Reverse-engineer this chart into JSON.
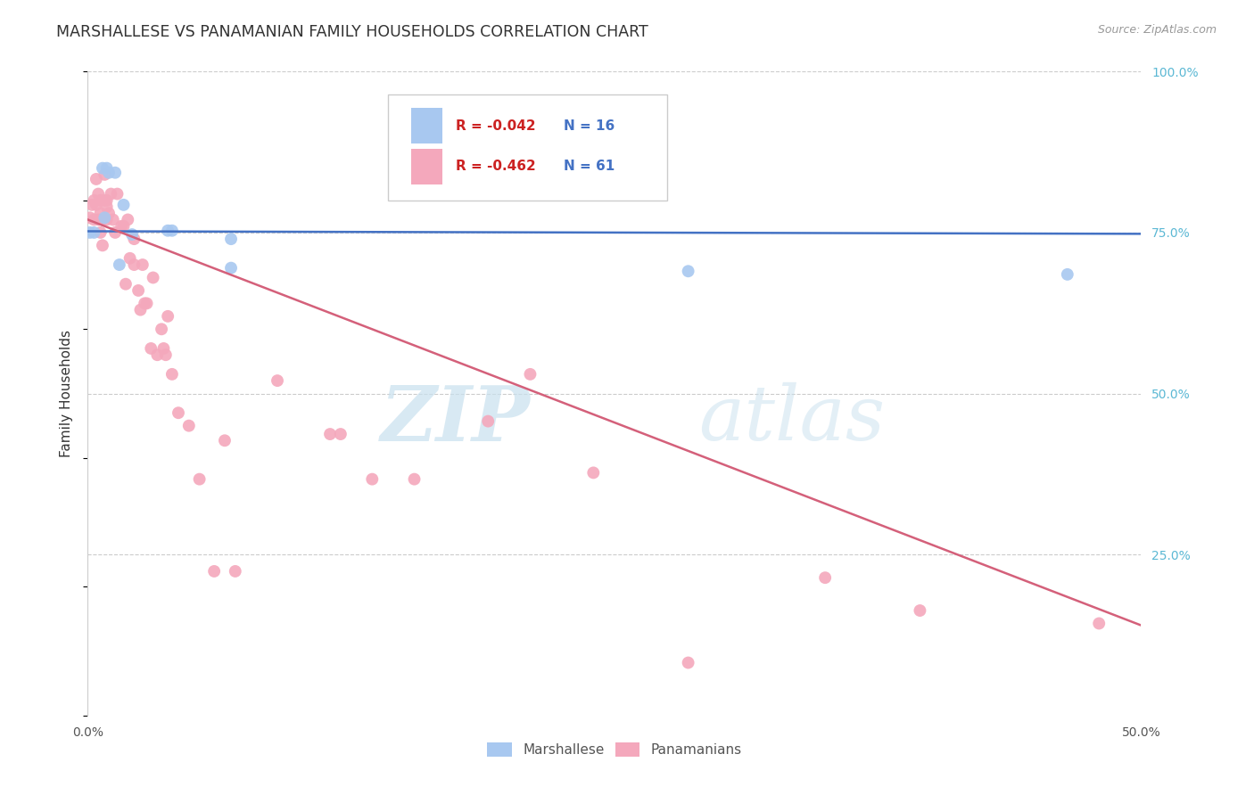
{
  "title": "MARSHALLESE VS PANAMANIAN FAMILY HOUSEHOLDS CORRELATION CHART",
  "source": "Source: ZipAtlas.com",
  "ylabel": "Family Households",
  "x_min": 0.0,
  "x_max": 0.5,
  "y_min": 0.0,
  "y_max": 1.0,
  "marshallese_color": "#A8C8F0",
  "panamanian_color": "#F4A8BC",
  "marshallese_line_color": "#4472C4",
  "panamanian_line_color": "#D4607A",
  "legend_R_marshallese": "-0.042",
  "legend_N_marshallese": "16",
  "legend_R_panamanian": "-0.462",
  "legend_N_panamanian": "61",
  "watermark_zip": "ZIP",
  "watermark_atlas": "atlas",
  "marsh_line_y0": 0.752,
  "marsh_line_y1": 0.748,
  "pan_line_y0": 0.77,
  "pan_line_y1": 0.14,
  "marshallese_x": [
    0.001,
    0.003,
    0.007,
    0.009,
    0.01,
    0.013,
    0.008,
    0.015,
    0.017,
    0.021,
    0.038,
    0.04,
    0.068,
    0.068,
    0.285,
    0.465
  ],
  "marshallese_y": [
    0.75,
    0.75,
    0.85,
    0.85,
    0.843,
    0.843,
    0.773,
    0.7,
    0.793,
    0.747,
    0.753,
    0.753,
    0.74,
    0.695,
    0.69,
    0.685
  ],
  "panamanian_x": [
    0.001,
    0.002,
    0.003,
    0.003,
    0.004,
    0.004,
    0.005,
    0.005,
    0.006,
    0.006,
    0.006,
    0.007,
    0.007,
    0.008,
    0.008,
    0.009,
    0.009,
    0.009,
    0.01,
    0.011,
    0.012,
    0.013,
    0.014,
    0.016,
    0.017,
    0.018,
    0.019,
    0.02,
    0.022,
    0.022,
    0.024,
    0.025,
    0.026,
    0.027,
    0.028,
    0.03,
    0.031,
    0.033,
    0.035,
    0.036,
    0.037,
    0.038,
    0.04,
    0.043,
    0.048,
    0.053,
    0.06,
    0.065,
    0.07,
    0.09,
    0.115,
    0.12,
    0.135,
    0.155,
    0.19,
    0.21,
    0.24,
    0.285,
    0.35,
    0.395,
    0.48
  ],
  "panamanian_y": [
    0.773,
    0.793,
    0.8,
    0.77,
    0.793,
    0.833,
    0.81,
    0.77,
    0.8,
    0.78,
    0.75,
    0.77,
    0.73,
    0.84,
    0.8,
    0.8,
    0.79,
    0.77,
    0.78,
    0.81,
    0.77,
    0.75,
    0.81,
    0.76,
    0.76,
    0.67,
    0.77,
    0.71,
    0.74,
    0.7,
    0.66,
    0.63,
    0.7,
    0.64,
    0.64,
    0.57,
    0.68,
    0.56,
    0.6,
    0.57,
    0.56,
    0.62,
    0.53,
    0.47,
    0.45,
    0.367,
    0.224,
    0.427,
    0.224,
    0.52,
    0.437,
    0.437,
    0.367,
    0.367,
    0.457,
    0.53,
    0.377,
    0.082,
    0.214,
    0.163,
    0.143
  ]
}
